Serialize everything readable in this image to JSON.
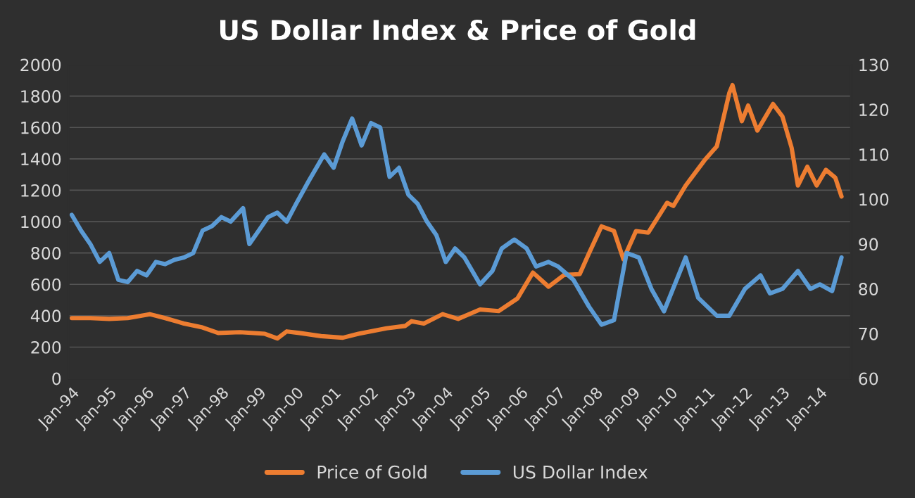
{
  "chart_data": {
    "type": "line",
    "title": "US Dollar Index & Price of Gold",
    "xlim": [
      "1993-12",
      "2014-11"
    ],
    "xticks": [
      {
        "value": "1994-01",
        "label": "Jan-94"
      },
      {
        "value": "1995-01",
        "label": "Jan-95"
      },
      {
        "value": "1996-01",
        "label": "Jan-96"
      },
      {
        "value": "1997-01",
        "label": "Jan-97"
      },
      {
        "value": "1998-01",
        "label": "Jan-98"
      },
      {
        "value": "1999-01",
        "label": "Jan-99"
      },
      {
        "value": "2000-01",
        "label": "Jan-00"
      },
      {
        "value": "2001-01",
        "label": "Jan-01"
      },
      {
        "value": "2002-01",
        "label": "Jan-02"
      },
      {
        "value": "2003-01",
        "label": "Jan-03"
      },
      {
        "value": "2004-01",
        "label": "Jan-04"
      },
      {
        "value": "2005-01",
        "label": "Jan-05"
      },
      {
        "value": "2006-01",
        "label": "Jan-06"
      },
      {
        "value": "2007-01",
        "label": "Jan-07"
      },
      {
        "value": "2008-01",
        "label": "Jan-08"
      },
      {
        "value": "2009-01",
        "label": "Jan-09"
      },
      {
        "value": "2010-01",
        "label": "Jan-10"
      },
      {
        "value": "2011-01",
        "label": "Jan-11"
      },
      {
        "value": "2012-01",
        "label": "Jan-12"
      },
      {
        "value": "2013-01",
        "label": "Jan-13"
      },
      {
        "value": "2014-01",
        "label": "Jan-14"
      }
    ],
    "ylim": [
      0,
      2000
    ],
    "yticks": [
      0,
      200,
      400,
      600,
      800,
      1000,
      1200,
      1400,
      1600,
      1800,
      2000
    ],
    "y2lim": [
      60,
      130
    ],
    "y2ticks": [
      60,
      70,
      80,
      90,
      100,
      110,
      120,
      130
    ],
    "grid": "y",
    "legend": "bottom",
    "marker": "none",
    "line_style": "solid",
    "series": [
      {
        "name": "Price of Gold",
        "color": "#ed7d31",
        "x": [
          "1994-01",
          "1994-07",
          "1995-01",
          "1995-07",
          "1996-02",
          "1996-07",
          "1997-01",
          "1997-07",
          "1997-12",
          "1998-07",
          "1999-03",
          "1999-07",
          "1999-10",
          "2000-02",
          "2000-09",
          "2001-04",
          "2001-09",
          "2002-06",
          "2002-12",
          "2003-02",
          "2003-06",
          "2003-12",
          "2004-05",
          "2004-12",
          "2005-06",
          "2005-12",
          "2006-05",
          "2006-10",
          "2007-03",
          "2007-08",
          "2007-11",
          "2008-03",
          "2008-07",
          "2008-10",
          "2009-02",
          "2009-06",
          "2009-12",
          "2010-02",
          "2010-06",
          "2010-12",
          "2011-04",
          "2011-08",
          "2011-09",
          "2011-12",
          "2012-02",
          "2012-05",
          "2012-10",
          "2013-01",
          "2013-04",
          "2013-06",
          "2013-09",
          "2013-12",
          "2014-03",
          "2014-06",
          "2014-08"
        ],
        "values": [
          385,
          385,
          380,
          385,
          410,
          385,
          350,
          325,
          290,
          295,
          285,
          255,
          300,
          290,
          270,
          260,
          285,
          320,
          335,
          365,
          350,
          410,
          380,
          440,
          430,
          510,
          675,
          585,
          660,
          665,
          800,
          970,
          940,
          760,
          940,
          930,
          1120,
          1100,
          1230,
          1390,
          1480,
          1820,
          1870,
          1640,
          1740,
          1580,
          1750,
          1670,
          1470,
          1230,
          1350,
          1230,
          1330,
          1280,
          1160
        ]
      },
      {
        "name": "US Dollar Index",
        "color": "#5b9bd5",
        "axis": "y2",
        "x": [
          "1994-01",
          "1994-04",
          "1994-07",
          "1994-10",
          "1995-01",
          "1995-04",
          "1995-07",
          "1995-10",
          "1996-01",
          "1996-04",
          "1996-07",
          "1996-10",
          "1997-01",
          "1997-04",
          "1997-07",
          "1997-10",
          "1998-01",
          "1998-04",
          "1998-08",
          "1998-10",
          "1999-01",
          "1999-04",
          "1999-07",
          "1999-10",
          "2000-01",
          "2000-05",
          "2000-10",
          "2001-01",
          "2001-04",
          "2001-07",
          "2001-10",
          "2002-01",
          "2002-04",
          "2002-07",
          "2002-10",
          "2003-01",
          "2003-04",
          "2003-07",
          "2003-10",
          "2004-01",
          "2004-04",
          "2004-07",
          "2004-12",
          "2005-04",
          "2005-07",
          "2005-11",
          "2006-03",
          "2006-06",
          "2006-10",
          "2007-01",
          "2007-06",
          "2007-11",
          "2008-03",
          "2008-07",
          "2008-11",
          "2009-03",
          "2009-07",
          "2009-11",
          "2010-06",
          "2010-10",
          "2011-04",
          "2011-08",
          "2012-01",
          "2012-06",
          "2012-09",
          "2013-01",
          "2013-06",
          "2013-10",
          "2014-01",
          "2014-05",
          "2014-08"
        ],
        "values": [
          96.5,
          93,
          90,
          86,
          88,
          82,
          81.5,
          84,
          83,
          86,
          85.5,
          86.5,
          87,
          88,
          93,
          94,
          96,
          95,
          98,
          90,
          93,
          96,
          97,
          95,
          99,
          104,
          110,
          107,
          113,
          118,
          112,
          117,
          116,
          105,
          107,
          101,
          99,
          95,
          92,
          86,
          89,
          87,
          81,
          84,
          89,
          91,
          89,
          85,
          86,
          85,
          82,
          76,
          72,
          73,
          88,
          87,
          80,
          75,
          87,
          78,
          74,
          74,
          80,
          83,
          79,
          80,
          84,
          80,
          81,
          79.5,
          87
        ]
      }
    ]
  }
}
